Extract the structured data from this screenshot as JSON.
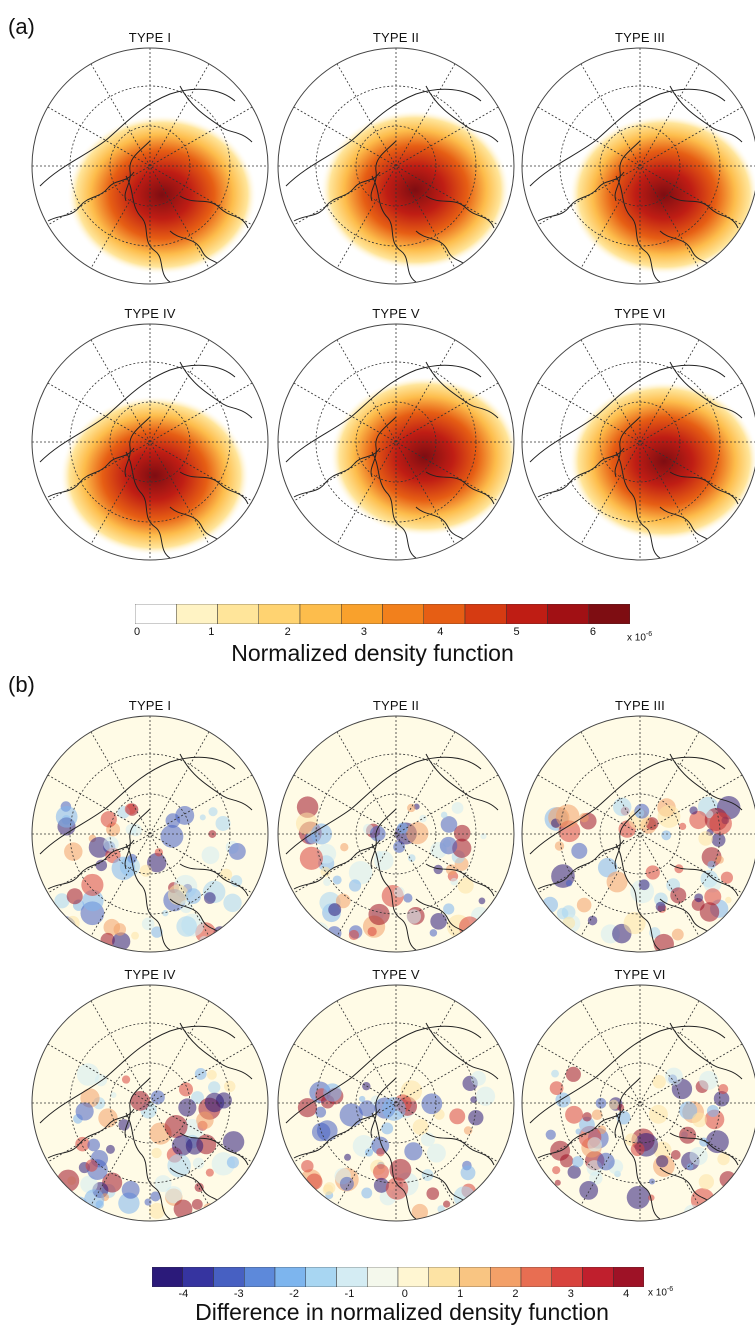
{
  "panels": [
    {
      "label": "(a)",
      "maps": [
        {
          "title": "TYPE I",
          "blob": [
            0.55,
            0.62
          ]
        },
        {
          "title": "TYPE II",
          "blob": [
            0.58,
            0.6
          ]
        },
        {
          "title": "TYPE III",
          "blob": [
            0.6,
            0.62
          ]
        },
        {
          "title": "TYPE IV",
          "blob": [
            0.52,
            0.64
          ]
        },
        {
          "title": "TYPE V",
          "blob": [
            0.62,
            0.56
          ]
        },
        {
          "title": "TYPE VI",
          "blob": [
            0.6,
            0.58
          ]
        }
      ],
      "colorbar": {
        "title": "Normalized density function",
        "ticks": [
          "0",
          "1",
          "2",
          "3",
          "4",
          "5",
          "6"
        ],
        "scale_base": "x 10",
        "scale_exp": "-6",
        "colors": [
          "#ffffff",
          "#fff3c4",
          "#ffe59a",
          "#ffd371",
          "#fdbd4c",
          "#f9a12c",
          "#f2801c",
          "#e65e14",
          "#d63b12",
          "#bf1d14",
          "#a11014",
          "#7e0d12"
        ]
      }
    },
    {
      "label": "(b)",
      "maps": [
        {
          "title": "TYPE I"
        },
        {
          "title": "TYPE II"
        },
        {
          "title": "TYPE III"
        },
        {
          "title": "TYPE IV"
        },
        {
          "title": "TYPE V"
        },
        {
          "title": "TYPE VI"
        }
      ],
      "colorbar": {
        "title": "Difference in normalized density function",
        "ticks": [
          "-4",
          "-3",
          "-2",
          "-1",
          "0",
          "1",
          "2",
          "3",
          "4"
        ],
        "scale_base": "x 10",
        "scale_exp": "-6",
        "colors": [
          "#2b1a7a",
          "#3634a0",
          "#4760c2",
          "#5d89da",
          "#7db5ee",
          "#a8d6f2",
          "#d4ecf3",
          "#f4f8ec",
          "#fff6d2",
          "#fde3a4",
          "#f9c582",
          "#f3a068",
          "#e86e52",
          "#d8433d",
          "#c01f2d",
          "#9e1226"
        ]
      }
    }
  ]
}
